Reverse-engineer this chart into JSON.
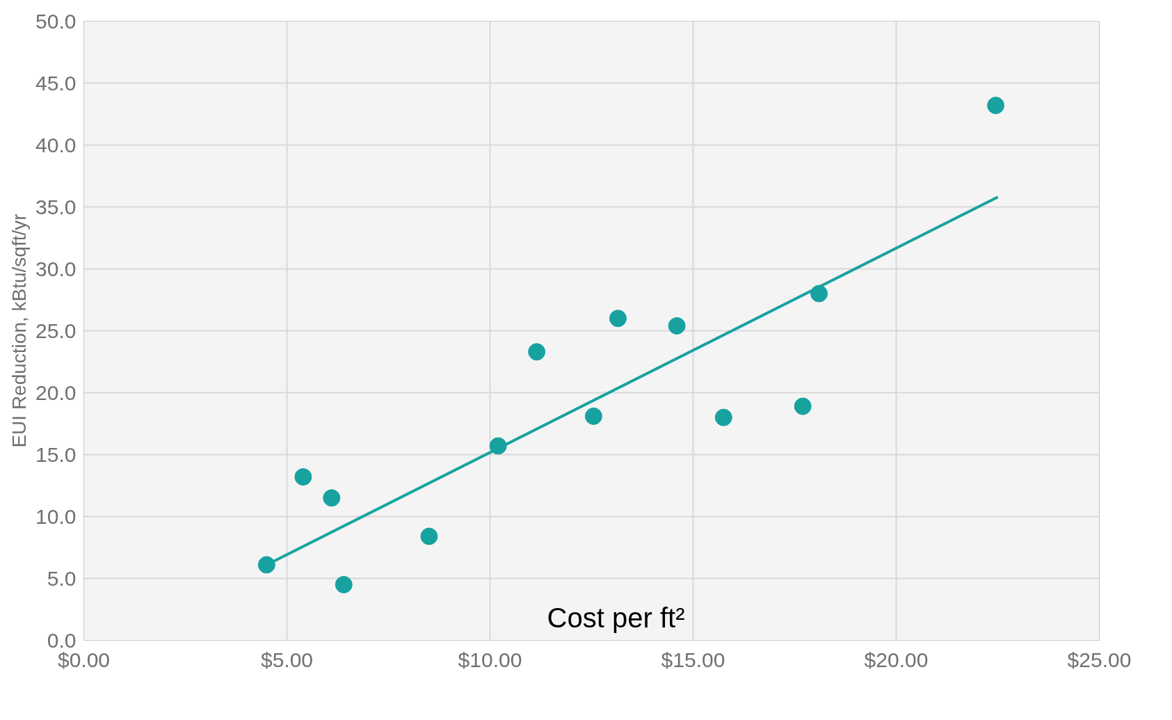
{
  "chart_data": {
    "type": "scatter",
    "xlabel": "Cost per ft²",
    "ylabel": "EUI Reduction, kBtu/sqft/yr",
    "xlim": [
      0,
      25
    ],
    "ylim": [
      0,
      50
    ],
    "xticks": [
      {
        "value": 0,
        "label": "$0.00"
      },
      {
        "value": 5,
        "label": "$5.00"
      },
      {
        "value": 10,
        "label": "$10.00"
      },
      {
        "value": 15,
        "label": "$15.00"
      },
      {
        "value": 20,
        "label": "$20.00"
      },
      {
        "value": 25,
        "label": "$25.00"
      }
    ],
    "yticks": [
      {
        "value": 0,
        "label": "0.0"
      },
      {
        "value": 5,
        "label": "5.0"
      },
      {
        "value": 10,
        "label": "10.0"
      },
      {
        "value": 15,
        "label": "15.0"
      },
      {
        "value": 20,
        "label": "20.0"
      },
      {
        "value": 25,
        "label": "25.0"
      },
      {
        "value": 30,
        "label": "30.0"
      },
      {
        "value": 35,
        "label": "35.0"
      },
      {
        "value": 40,
        "label": "40.0"
      },
      {
        "value": 45,
        "label": "45.0"
      },
      {
        "value": 50,
        "label": "50.0"
      }
    ],
    "grid": true,
    "series": [
      {
        "marker": "circle",
        "color": "#17a2a0",
        "x": [
          4.5,
          5.4,
          6.1,
          6.4,
          8.5,
          10.2,
          11.15,
          12.55,
          13.15,
          14.6,
          15.75,
          17.7,
          18.1,
          22.45
        ],
        "values": [
          6.1,
          13.2,
          11.5,
          4.5,
          8.4,
          15.7,
          23.3,
          18.1,
          26.0,
          25.4,
          18.0,
          18.9,
          28.0,
          43.2
        ]
      },
      {
        "type": "line",
        "color": "#17a2a0",
        "x": [
          4.5,
          22.5
        ],
        "values": [
          6.1,
          35.8
        ]
      }
    ]
  }
}
